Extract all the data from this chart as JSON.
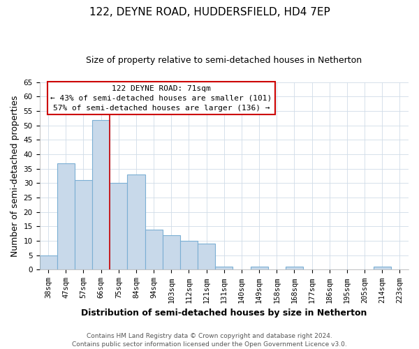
{
  "title": "122, DEYNE ROAD, HUDDERSFIELD, HD4 7EP",
  "subtitle": "Size of property relative to semi-detached houses in Netherton",
  "xlabel": "Distribution of semi-detached houses by size in Netherton",
  "ylabel": "Number of semi-detached properties",
  "categories": [
    "38sqm",
    "47sqm",
    "57sqm",
    "66sqm",
    "75sqm",
    "84sqm",
    "94sqm",
    "103sqm",
    "112sqm",
    "121sqm",
    "131sqm",
    "140sqm",
    "149sqm",
    "158sqm",
    "168sqm",
    "177sqm",
    "186sqm",
    "195sqm",
    "205sqm",
    "214sqm",
    "223sqm"
  ],
  "values": [
    5,
    37,
    31,
    52,
    30,
    33,
    14,
    12,
    10,
    9,
    1,
    0,
    1,
    0,
    1,
    0,
    0,
    0,
    0,
    1,
    0
  ],
  "bar_color": "#c8d9ea",
  "bar_edge_color": "#7bafd4",
  "bar_edge_width": 0.8,
  "red_line_x": 3.5,
  "annotation_title": "122 DEYNE ROAD: 71sqm",
  "annotation_line1": "← 43% of semi-detached houses are smaller (101)",
  "annotation_line2": "57% of semi-detached houses are larger (136) →",
  "annotation_box_color": "#ffffff",
  "annotation_box_edge": "#cc0000",
  "ylim": [
    0,
    65
  ],
  "yticks": [
    0,
    5,
    10,
    15,
    20,
    25,
    30,
    35,
    40,
    45,
    50,
    55,
    60,
    65
  ],
  "footer_line1": "Contains HM Land Registry data © Crown copyright and database right 2024.",
  "footer_line2": "Contains public sector information licensed under the Open Government Licence v3.0.",
  "background_color": "#ffffff",
  "grid_color": "#d0dce8",
  "title_fontsize": 11,
  "subtitle_fontsize": 9,
  "axis_label_fontsize": 9,
  "tick_fontsize": 7.5,
  "footer_fontsize": 6.5,
  "ann_fontsize": 8
}
